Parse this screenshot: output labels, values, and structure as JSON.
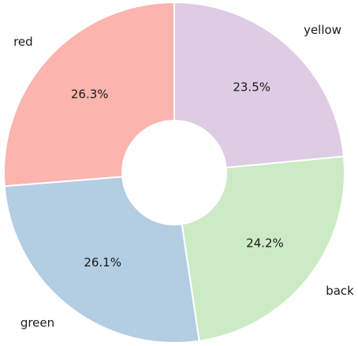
{
  "chart_data": {
    "type": "pie",
    "donut": true,
    "start_angle_deg": 90,
    "direction": "counterclockwise",
    "slices": [
      {
        "label": "red",
        "value": 26.3,
        "pct_label": "26.3%",
        "color": "#fbb4ae"
      },
      {
        "label": "green",
        "value": 26.1,
        "pct_label": "26.1%",
        "color": "#b3cde3"
      },
      {
        "label": "back",
        "value": 24.2,
        "pct_label": "24.2%",
        "color": "#ccebc5"
      },
      {
        "label": "yellow",
        "value": 23.5,
        "pct_label": "23.5%",
        "color": "#decbe4"
      }
    ]
  }
}
